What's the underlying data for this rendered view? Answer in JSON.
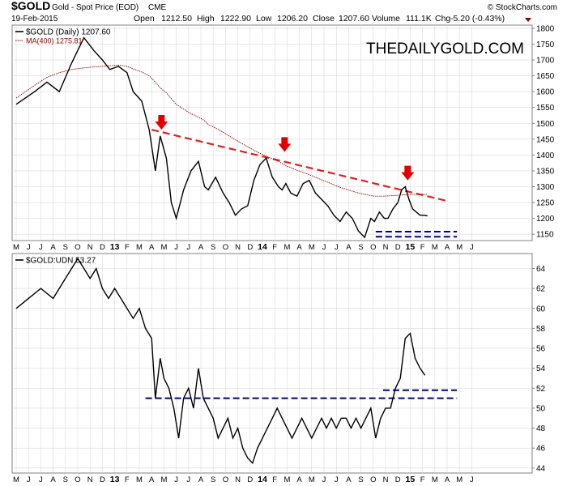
{
  "header": {
    "symbol": "$GOLD",
    "description": "Gold - Spot Price (EOD)",
    "exchange": "CME",
    "date": "19-Feb-2015",
    "open_label": "Open",
    "open": "1212.50",
    "high_label": "High",
    "high": "1222.90",
    "low_label": "Low",
    "low": "1206.20",
    "close_label": "Close",
    "close": "1207.60",
    "volume_label": "Volume",
    "volume": "111.1K",
    "chg_label": "Chg",
    "chg": "-5.20 (-0.43%)",
    "copyright": "© StockCharts.com",
    "watermark": "THEDAILYGOLD.COM"
  },
  "colors": {
    "price": "#000000",
    "ma": "#8b0000",
    "trendline": "#e02020",
    "arrow": "#e00000",
    "support": "#00008b",
    "panel_border": "#808080",
    "grid": "#d3d3d3"
  },
  "chart_data": [
    {
      "type": "line",
      "legend": [
        {
          "label": "$GOLD (Daily) 1207.60",
          "color": "#000000"
        },
        {
          "label": "MA(400) 1275.81",
          "color": "#8b0000"
        }
      ],
      "ylim": [
        1130,
        1810
      ],
      "yticks": [
        1150,
        1200,
        1250,
        1300,
        1350,
        1400,
        1450,
        1500,
        1550,
        1600,
        1650,
        1700,
        1750,
        1800
      ],
      "x_tick_labels": [
        "M",
        "J",
        "J",
        "A",
        "S",
        "O",
        "N",
        "D",
        "13",
        "F",
        "M",
        "A",
        "M",
        "J",
        "J",
        "A",
        "S",
        "O",
        "N",
        "D",
        "14",
        "F",
        "M",
        "A",
        "M",
        "J",
        "J",
        "A",
        "S",
        "O",
        "N",
        "D",
        "15",
        "F",
        "M",
        "A",
        "M",
        "J"
      ],
      "x": [
        0,
        1.5,
        2.5,
        3.5,
        4.5,
        5.5,
        6.3,
        7,
        7.6,
        8.3,
        9,
        9.5,
        10.2,
        10.8,
        11.3,
        11.7,
        12.2,
        12.6,
        13,
        13.6,
        14.2,
        14.8,
        15.3,
        15.6,
        16.2,
        16.8,
        17.3,
        17.8,
        18.3,
        18.8,
        19.3,
        19.8,
        20.3,
        20.8,
        21.3,
        21.6,
        21.9,
        22.3,
        22.8,
        23.3,
        23.8,
        24.3,
        24.8,
        25.3,
        25.8,
        26.3,
        26.8,
        27.3,
        27.8,
        28.3,
        28.8,
        29.1,
        29.5,
        29.9,
        30.2,
        30.6,
        31,
        31.3,
        31.6,
        31.9,
        32.2,
        32.5,
        32.8,
        33.1,
        33.4
      ],
      "series": [
        {
          "values": [
            1560,
            1600,
            1630,
            1600,
            1690,
            1770,
            1730,
            1700,
            1670,
            1680,
            1660,
            1600,
            1570,
            1480,
            1350,
            1460,
            1390,
            1250,
            1200,
            1290,
            1350,
            1380,
            1300,
            1290,
            1330,
            1280,
            1250,
            1210,
            1230,
            1240,
            1320,
            1370,
            1390,
            1330,
            1300,
            1290,
            1310,
            1280,
            1270,
            1310,
            1320,
            1280,
            1260,
            1240,
            1210,
            1190,
            1220,
            1200,
            1160,
            1140,
            1200,
            1190,
            1220,
            1200,
            1200,
            1230,
            1250,
            1290,
            1300,
            1260,
            1230,
            1220,
            1210,
            1210,
            1208
          ]
        },
        {
          "values": [
            1580,
            1620,
            1645,
            1660,
            1670,
            1675,
            1678,
            1680,
            1682,
            1684,
            1680,
            1672,
            1662,
            1650,
            1630,
            1612,
            1596,
            1578,
            1560,
            1545,
            1530,
            1520,
            1508,
            1496,
            1485,
            1472,
            1460,
            1448,
            1437,
            1426,
            1415,
            1405,
            1396,
            1388,
            1380,
            1373,
            1366,
            1360,
            1352,
            1345,
            1338,
            1330,
            1322,
            1314,
            1306,
            1298,
            1292,
            1286,
            1280,
            1276,
            1272,
            1270,
            1270,
            1270,
            1271,
            1272,
            1273,
            1274,
            1275,
            1275,
            1276,
            1276,
            1276,
            1276,
            1276
          ]
        }
      ],
      "annotations": {
        "resistance_line": {
          "from": [
            11,
            1480
          ],
          "to": [
            35,
            1255
          ]
        },
        "arrow_points": [
          [
            11.8,
            1470
          ],
          [
            21.8,
            1400
          ],
          [
            31.8,
            1310
          ]
        ],
        "support_lines": [
          [
            29.2,
            35.8,
            1158
          ],
          [
            29.2,
            35.8,
            1142
          ]
        ]
      }
    },
    {
      "type": "line",
      "legend": [
        {
          "label": "$GOLD:UDN 53.27",
          "color": "#000000"
        }
      ],
      "ylim": [
        43.5,
        65.5
      ],
      "yticks": [
        44,
        46,
        48,
        50,
        52,
        54,
        56,
        58,
        60,
        62,
        64
      ],
      "x_tick_labels": [
        "M",
        "J",
        "J",
        "A",
        "S",
        "O",
        "N",
        "D",
        "13",
        "F",
        "M",
        "A",
        "M",
        "J",
        "J",
        "A",
        "S",
        "O",
        "N",
        "D",
        "14",
        "F",
        "M",
        "A",
        "M",
        "J",
        "J",
        "A",
        "S",
        "O",
        "N",
        "D",
        "15",
        "F",
        "M",
        "A",
        "M",
        "J"
      ],
      "x": [
        0,
        1,
        2,
        3,
        4,
        5,
        5.5,
        6,
        6.5,
        7,
        7.5,
        8,
        8.5,
        9,
        9.5,
        10,
        10.5,
        11,
        11.3,
        11.7,
        12,
        12.4,
        12.8,
        13.2,
        13.6,
        14,
        14.4,
        14.8,
        15.2,
        15.6,
        16,
        16.4,
        16.8,
        17.2,
        17.6,
        18,
        18.4,
        18.8,
        19.2,
        19.6,
        20,
        20.4,
        20.8,
        21.2,
        21.6,
        22,
        22.4,
        22.8,
        23.2,
        23.6,
        24,
        24.4,
        24.8,
        25.2,
        25.6,
        26,
        26.4,
        26.8,
        27.2,
        27.6,
        28,
        28.4,
        28.8,
        29.2,
        29.6,
        30,
        30.4,
        30.8,
        31.2,
        31.6,
        32,
        32.4,
        32.8,
        33.2
      ],
      "series": [
        {
          "values": [
            60,
            61,
            62,
            61,
            63,
            65,
            64,
            63,
            64,
            62,
            61,
            62,
            61,
            60,
            59,
            60,
            58,
            57,
            51,
            55,
            53,
            52,
            50,
            47,
            51,
            52,
            50,
            54,
            51,
            50,
            49,
            47,
            48,
            49,
            47,
            48,
            46,
            45,
            44.5,
            46,
            47,
            48,
            49,
            50,
            49,
            48,
            47,
            48,
            49,
            48,
            47,
            48,
            49,
            48,
            49,
            48,
            49,
            49,
            48,
            49,
            48,
            49,
            50,
            47,
            49,
            50,
            50,
            52,
            53,
            57,
            57.5,
            55,
            54,
            53.3
          ]
        }
      ],
      "annotations": {
        "support_lines": [
          [
            10.5,
            35.8,
            51.0
          ],
          [
            29.8,
            35.8,
            51.8
          ]
        ]
      }
    }
  ]
}
